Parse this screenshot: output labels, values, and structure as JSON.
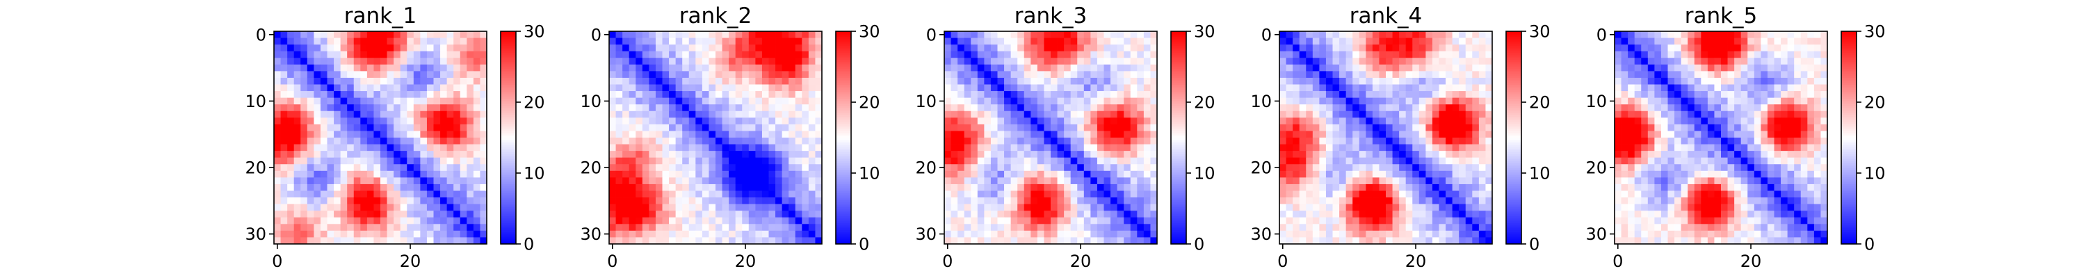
{
  "chart_data": [
    {
      "type": "heatmap",
      "title": "rank_1",
      "size": 32,
      "xticks": [
        0,
        20
      ],
      "yticks": [
        0,
        10,
        20,
        30
      ],
      "colorbar": {
        "min": 0,
        "max": 30,
        "ticks": [
          0,
          10,
          20,
          30
        ],
        "colormap": "bwr"
      },
      "hotspots": [
        {
          "i": 1,
          "j": 16,
          "v": 27
        },
        {
          "i": 16,
          "j": 1,
          "v": 27
        },
        {
          "i": 13,
          "j": 2,
          "v": 26
        },
        {
          "i": 2,
          "j": 13,
          "v": 26
        },
        {
          "i": 13,
          "j": 24,
          "v": 22
        },
        {
          "i": 24,
          "j": 13,
          "v": 22
        },
        {
          "i": 6,
          "j": 22,
          "v": 6
        },
        {
          "i": 22,
          "j": 6,
          "v": 6
        },
        {
          "i": 26,
          "j": 14,
          "v": 27
        },
        {
          "i": 14,
          "j": 26,
          "v": 27
        },
        {
          "i": 30,
          "j": 3,
          "v": 22
        },
        {
          "i": 3,
          "j": 30,
          "v": 22
        }
      ]
    },
    {
      "type": "heatmap",
      "title": "rank_2",
      "size": 32,
      "xticks": [
        0,
        20
      ],
      "yticks": [
        0,
        10,
        20,
        30
      ],
      "colorbar": {
        "min": 0,
        "max": 30,
        "ticks": [
          0,
          10,
          20,
          30
        ],
        "colormap": "bwr"
      },
      "hotspots": [
        {
          "i": 1,
          "j": 22,
          "v": 26
        },
        {
          "i": 22,
          "j": 1,
          "v": 26
        },
        {
          "i": 5,
          "j": 26,
          "v": 24
        },
        {
          "i": 26,
          "j": 5,
          "v": 24
        },
        {
          "i": 27,
          "j": 1,
          "v": 26
        },
        {
          "i": 1,
          "j": 27,
          "v": 26
        },
        {
          "i": 18,
          "j": 4,
          "v": 20
        },
        {
          "i": 4,
          "j": 18,
          "v": 20
        },
        {
          "i": 22,
          "j": 20,
          "v": 6
        },
        {
          "i": 20,
          "j": 22,
          "v": 6
        }
      ]
    },
    {
      "type": "heatmap",
      "title": "rank_3",
      "size": 32,
      "xticks": [
        0,
        20
      ],
      "yticks": [
        0,
        10,
        20,
        30
      ],
      "colorbar": {
        "min": 0,
        "max": 30,
        "ticks": [
          0,
          10,
          20,
          30
        ],
        "colormap": "bwr"
      },
      "hotspots": [
        {
          "i": 1,
          "j": 18,
          "v": 26
        },
        {
          "i": 18,
          "j": 1,
          "v": 26
        },
        {
          "i": 14,
          "j": 2,
          "v": 24
        },
        {
          "i": 2,
          "j": 14,
          "v": 24
        },
        {
          "i": 14,
          "j": 24,
          "v": 22
        },
        {
          "i": 24,
          "j": 14,
          "v": 22
        },
        {
          "i": 26,
          "j": 14,
          "v": 27
        },
        {
          "i": 14,
          "j": 26,
          "v": 27
        },
        {
          "i": 7,
          "j": 22,
          "v": 8
        },
        {
          "i": 22,
          "j": 7,
          "v": 8
        }
      ]
    },
    {
      "type": "heatmap",
      "title": "rank_4",
      "size": 32,
      "xticks": [
        0,
        20
      ],
      "yticks": [
        0,
        10,
        20,
        30
      ],
      "colorbar": {
        "min": 0,
        "max": 30,
        "ticks": [
          0,
          10,
          20,
          30
        ],
        "colormap": "bwr"
      },
      "hotspots": [
        {
          "i": 1,
          "j": 20,
          "v": 26
        },
        {
          "i": 20,
          "j": 1,
          "v": 26
        },
        {
          "i": 15,
          "j": 2,
          "v": 27
        },
        {
          "i": 2,
          "j": 15,
          "v": 27
        },
        {
          "i": 13,
          "j": 25,
          "v": 25
        },
        {
          "i": 25,
          "j": 13,
          "v": 25
        },
        {
          "i": 26,
          "j": 14,
          "v": 28
        },
        {
          "i": 14,
          "j": 26,
          "v": 28
        },
        {
          "i": 8,
          "j": 22,
          "v": 9
        },
        {
          "i": 22,
          "j": 8,
          "v": 9
        }
      ]
    },
    {
      "type": "heatmap",
      "title": "rank_5",
      "size": 32,
      "xticks": [
        0,
        20
      ],
      "yticks": [
        0,
        10,
        20,
        30
      ],
      "colorbar": {
        "min": 0,
        "max": 30,
        "ticks": [
          0,
          10,
          20,
          30
        ],
        "colormap": "bwr"
      },
      "hotspots": [
        {
          "i": 1,
          "j": 16,
          "v": 28
        },
        {
          "i": 16,
          "j": 1,
          "v": 28
        },
        {
          "i": 14,
          "j": 2,
          "v": 27
        },
        {
          "i": 2,
          "j": 14,
          "v": 27
        },
        {
          "i": 14,
          "j": 25,
          "v": 23
        },
        {
          "i": 25,
          "j": 14,
          "v": 23
        },
        {
          "i": 26,
          "j": 14,
          "v": 27
        },
        {
          "i": 14,
          "j": 26,
          "v": 27
        },
        {
          "i": 7,
          "j": 22,
          "v": 7
        },
        {
          "i": 22,
          "j": 7,
          "v": 7
        }
      ]
    }
  ]
}
